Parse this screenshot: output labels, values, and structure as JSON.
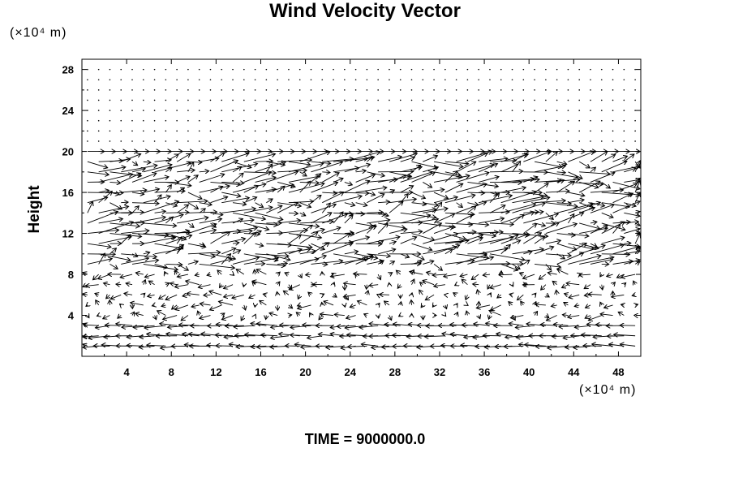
{
  "chart_data": {
    "type": "vector_field",
    "title": "Wind Velocity Vector",
    "ylabel": "Height",
    "xunit_label": "(×10⁴ m)",
    "yunit_label": "(×10⁴ m)",
    "footer": "TIME = 9000000.0",
    "xlim": [
      0,
      50
    ],
    "ylim": [
      0,
      29
    ],
    "xticks": [
      4,
      8,
      12,
      16,
      20,
      24,
      28,
      32,
      36,
      40,
      44,
      48
    ],
    "yticks": [
      4,
      8,
      12,
      16,
      20,
      24,
      28
    ],
    "grid": false,
    "grid_spacing": [
      2,
      1
    ],
    "layers": [
      {
        "y_from": 21,
        "y_to": 28,
        "u": 0.0,
        "v": 0.0
      },
      {
        "y_from": 20,
        "y_to": 20,
        "u": 1.3,
        "v": 0.0
      },
      {
        "y_from": 9,
        "y_to": 19,
        "u": 1.6,
        "v": 0.2,
        "turbulence": 1.2
      },
      {
        "y_from": 4,
        "y_to": 8,
        "u": -0.4,
        "v": 0.0,
        "turbulence": 0.7
      },
      {
        "y_from": 1,
        "y_to": 3,
        "u": -1.4,
        "v": 0.0,
        "turbulence": 0.3
      }
    ]
  }
}
